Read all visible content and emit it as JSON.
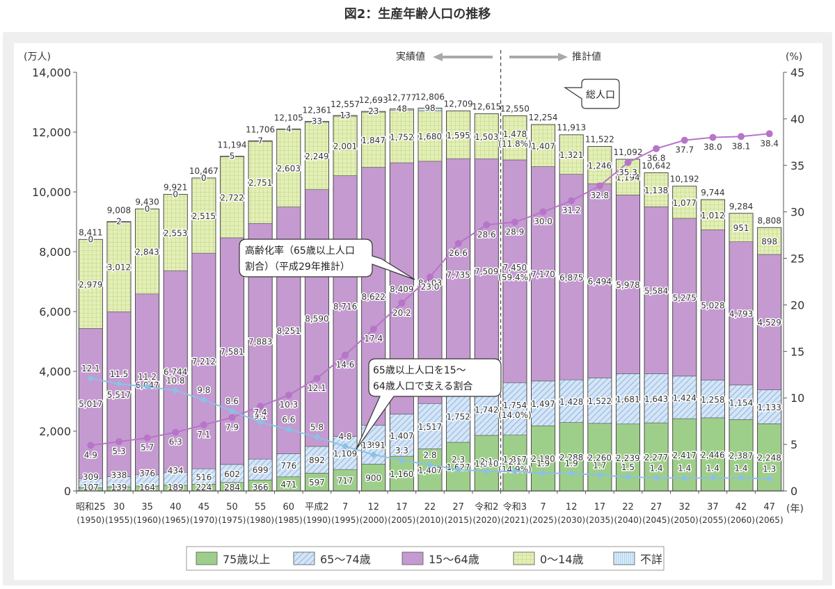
{
  "page": {
    "title": "図2：生産年齢人口の推移"
  },
  "colors": {
    "age75plus": "#9ecf8a",
    "age65to74": "#b7d3ee",
    "age15to64": "#c49ad0",
    "age0to14": "#e3efb8",
    "unknown": "#bcdcf4",
    "aging_line": "#b774c8",
    "support_line": "#8cc0e4"
  },
  "annotations": {
    "actual": "実績値",
    "projected": "推計値",
    "total_population": "総人口",
    "aging_rate": "高齢化率（65歳以上人口割合）（平成29年推計）",
    "support_ratio": "65歳以上人口を15～64歳人口で支える割合"
  },
  "chart_data": {
    "type": "bar",
    "stacked": true,
    "ylabel": "(万人)",
    "y2label": "(%)",
    "xlabel": "(年)",
    "ylim": [
      0,
      14000
    ],
    "y_ticks": [
      "0",
      "2,000",
      "4,000",
      "6,000",
      "8,000",
      "10,000",
      "12,000",
      "14,000"
    ],
    "y2lim": [
      0,
      45
    ],
    "y2_ticks": [
      "0",
      "5",
      "10",
      "15",
      "20",
      "25",
      "30",
      "35",
      "40",
      "45"
    ],
    "categories": [
      {
        "era": "昭和25",
        "year": "(1950)"
      },
      {
        "era": "30",
        "year": "(1955)"
      },
      {
        "era": "35",
        "year": "(1960)"
      },
      {
        "era": "40",
        "year": "(1965)"
      },
      {
        "era": "45",
        "year": "(1970)"
      },
      {
        "era": "50",
        "year": "(1975)"
      },
      {
        "era": "55",
        "year": "(1980)"
      },
      {
        "era": "60",
        "year": "(1985)"
      },
      {
        "era": "平成2",
        "year": "(1990)"
      },
      {
        "era": "7",
        "year": "(1995)"
      },
      {
        "era": "12",
        "year": "(2000)"
      },
      {
        "era": "17",
        "year": "(2005)"
      },
      {
        "era": "22",
        "year": "(2010)"
      },
      {
        "era": "27",
        "year": "(2015)"
      },
      {
        "era": "令和2",
        "year": "(2020)"
      },
      {
        "era": "令和3",
        "year": "(2021)"
      },
      {
        "era": "7",
        "year": "(2025)"
      },
      {
        "era": "12",
        "year": "(2030)"
      },
      {
        "era": "17",
        "year": "(2035)"
      },
      {
        "era": "22",
        "year": "(2040)"
      },
      {
        "era": "27",
        "year": "(2045)"
      },
      {
        "era": "32",
        "year": "(2050)"
      },
      {
        "era": "37",
        "year": "(2055)"
      },
      {
        "era": "42",
        "year": "(2060)"
      },
      {
        "era": "47",
        "year": "(2065)"
      }
    ],
    "series": [
      {
        "name": "75歳以上",
        "color_key": "age75plus",
        "values": [
          107,
          139,
          164,
          189,
          224,
          284,
          366,
          471,
          597,
          717,
          900,
          1160,
          1407,
          1627,
          1860,
          1867,
          2180,
          2288,
          2260,
          2239,
          2277,
          2417,
          2446,
          2387,
          2248
        ],
        "labels": [
          "107",
          "139",
          "164",
          "189",
          "224",
          "284",
          "366",
          "471",
          "597",
          "717",
          "900",
          "1,160",
          "1,407",
          "1,627",
          "1,860",
          "1,867\n(14.9%)",
          "2,180",
          "2,288",
          "2,260",
          "2,239",
          "2,277",
          "2,417",
          "2,446",
          "2,387",
          "2,248"
        ]
      },
      {
        "name": "65～74歳",
        "color_key": "age65to74",
        "values": [
          309,
          338,
          376,
          434,
          516,
          602,
          699,
          776,
          892,
          1109,
          1301,
          1407,
          1517,
          1752,
          1742,
          1754,
          1497,
          1428,
          1522,
          1681,
          1643,
          1424,
          1258,
          1154,
          1133
        ],
        "labels": [
          "309",
          "338",
          "376",
          "434",
          "516",
          "602",
          "699",
          "776",
          "892",
          "1,109",
          "1,301",
          "1,407",
          "1,517",
          "1,752",
          "1,742",
          "1,754\n(14.0%)",
          "1,497",
          "1,428",
          "1,522",
          "1,681",
          "1,643",
          "1,424",
          "1,258",
          "1,154",
          "1,133"
        ]
      },
      {
        "name": "15～64歳",
        "color_key": "age15to64",
        "values": [
          5017,
          5517,
          6047,
          6744,
          7212,
          7581,
          7883,
          8251,
          8590,
          8716,
          8622,
          8409,
          8103,
          7735,
          7509,
          7450,
          7170,
          6875,
          6494,
          5978,
          5584,
          5275,
          5028,
          4793,
          4529
        ],
        "labels": [
          "5,017",
          "5,517",
          "6,047",
          "6,744",
          "7,212",
          "7,581",
          "7,883",
          "8,251",
          "8,590",
          "8,716",
          "8,622",
          "8,409",
          "8,103",
          "7,735",
          "7,509",
          "7,450\n(59.4%)",
          "7,170",
          "6,875",
          "6,494",
          "5,978",
          "5,584",
          "5,275",
          "5,028",
          "4,793",
          "4,529"
        ]
      },
      {
        "name": "0～14歳",
        "color_key": "age0to14",
        "values": [
          2979,
          3012,
          2843,
          2553,
          2515,
          2722,
          2751,
          2603,
          2249,
          2001,
          1847,
          1752,
          1680,
          1595,
          1503,
          1478,
          1407,
          1321,
          1246,
          1194,
          1138,
          1077,
          1012,
          951,
          898
        ],
        "labels": [
          "2,979",
          "3,012",
          "2,843",
          "2,553",
          "2,515",
          "2,722",
          "2,751",
          "2,603",
          "2,249",
          "2,001",
          "1,847",
          "1,752",
          "1,680",
          "1,595",
          "1,503",
          "1,478\n(11.8%)",
          "1,407",
          "1,321",
          "1,246",
          "1,194",
          "1,138",
          "1,077",
          "1,012",
          "951",
          "898"
        ]
      },
      {
        "name": "不詳",
        "color_key": "unknown",
        "values": [
          0,
          2,
          0,
          0,
          0,
          5,
          7,
          4,
          33,
          13,
          23,
          48,
          98,
          null,
          null,
          null,
          null,
          null,
          null,
          null,
          null,
          null,
          null,
          null,
          null
        ],
        "labels": [
          "0",
          "2",
          "0",
          "0",
          "0",
          "5",
          "7",
          "4",
          "33",
          "13",
          "23",
          "48",
          "98",
          "",
          "",
          "",
          "",
          "",
          "",
          "",
          "",
          "",
          "",
          "",
          ""
        ]
      }
    ],
    "totals": [
      8411,
      9008,
      9430,
      9921,
      10467,
      11194,
      11706,
      12105,
      12361,
      12557,
      12693,
      12777,
      12806,
      12709,
      12615,
      12550,
      12254,
      11913,
      11522,
      11092,
      10642,
      10192,
      9744,
      9284,
      8808
    ],
    "total_labels": [
      "8,411",
      "9,008",
      "9,430",
      "9,921",
      "10,467",
      "11,194",
      "11,706",
      "12,105",
      "12,361",
      "12,557",
      "12,693",
      "12,777",
      "12,806",
      "12,709",
      "12,615",
      "12,550",
      "12,254",
      "11,913",
      "11,522",
      "11,092",
      "10,642",
      "10,192",
      "9,744",
      "9,284",
      "8,808"
    ],
    "lines": [
      {
        "name": "高齢化率（65歳以上人口割合）（平成29年推計）",
        "axis": "right",
        "color_key": "aging_line",
        "values": [
          4.9,
          5.3,
          5.7,
          6.3,
          7.1,
          7.9,
          9.1,
          10.3,
          12.1,
          14.6,
          17.4,
          20.2,
          23.0,
          26.6,
          28.6,
          28.9,
          30.0,
          31.2,
          32.8,
          35.3,
          36.8,
          37.7,
          38.0,
          38.1,
          38.4
        ],
        "labels": [
          "4.9",
          "5.3",
          "5.7",
          "6.3",
          "7.1",
          "7.9",
          "9.1",
          "10.3",
          "12.1",
          "14.6",
          "17.4",
          "20.2",
          "23.0",
          "26.6",
          "28.6",
          "28.9",
          "30.0",
          "31.2",
          "32.8",
          "35.3",
          "36.8",
          "37.7",
          "38.0",
          "38.1",
          "38.4"
        ]
      },
      {
        "name": "65歳以上人口を15～64歳人口で支える割合",
        "axis": "right",
        "color_key": "support_line",
        "values": [
          12.1,
          11.5,
          11.2,
          10.8,
          9.8,
          8.6,
          7.4,
          6.6,
          5.8,
          4.8,
          3.9,
          3.3,
          2.8,
          2.3,
          2.1,
          2.1,
          1.9,
          1.9,
          1.7,
          1.5,
          1.4,
          1.4,
          1.4,
          1.4,
          1.3
        ],
        "labels": [
          "12.1",
          "11.5",
          "11.2",
          "10.8",
          "9.8",
          "8.6",
          "7.4",
          "6.6",
          "5.8",
          "4.8",
          "3.9",
          "3.3",
          "2.8",
          "2.3",
          "2.1",
          "2.1",
          "1.9",
          "1.9",
          "1.7",
          "1.5",
          "1.4",
          "1.4",
          "1.4",
          "1.4",
          "1.3"
        ]
      }
    ],
    "legend_position": "bottom",
    "grid": false
  }
}
